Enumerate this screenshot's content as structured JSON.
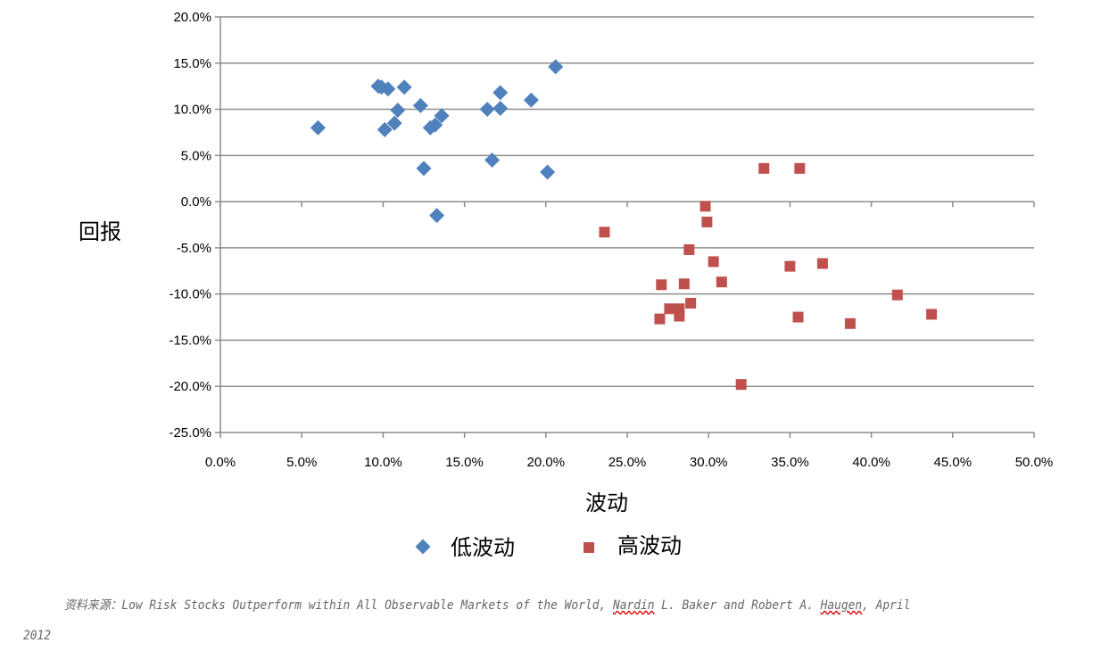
{
  "chart_data": {
    "type": "scatter",
    "xlabel": "波动",
    "ylabel": "回报",
    "xlim": [
      0,
      50
    ],
    "ylim": [
      -25,
      20
    ],
    "xticks": [
      "0.0%",
      "5.0%",
      "10.0%",
      "15.0%",
      "20.0%",
      "25.0%",
      "30.0%",
      "35.0%",
      "40.0%",
      "45.0%",
      "50.0%"
    ],
    "yticks": [
      "20.0%",
      "15.0%",
      "10.0%",
      "5.0%",
      "0.0%",
      "-5.0%",
      "-10.0%",
      "-15.0%",
      "-20.0%",
      "-25.0%"
    ],
    "grid": "horizontal",
    "legend_position": "bottom",
    "series": [
      {
        "name": "低波动",
        "marker": "diamond",
        "color": "#4F81BD",
        "points": [
          [
            6.0,
            8.0
          ],
          [
            9.7,
            12.5
          ],
          [
            9.9,
            12.4
          ],
          [
            10.3,
            12.2
          ],
          [
            11.3,
            12.4
          ],
          [
            12.3,
            10.4
          ],
          [
            10.9,
            9.9
          ],
          [
            10.1,
            7.8
          ],
          [
            10.7,
            8.5
          ],
          [
            12.9,
            8.0
          ],
          [
            13.2,
            8.3
          ],
          [
            13.6,
            9.3
          ],
          [
            12.5,
            3.6
          ],
          [
            13.3,
            -1.5
          ],
          [
            16.4,
            10.0
          ],
          [
            17.2,
            11.8
          ],
          [
            17.2,
            10.1
          ],
          [
            16.7,
            4.5
          ],
          [
            19.1,
            11.0
          ],
          [
            20.1,
            3.2
          ],
          [
            20.6,
            14.6
          ]
        ]
      },
      {
        "name": "高波动",
        "marker": "square",
        "color": "#C0504D",
        "points": [
          [
            23.6,
            -3.3
          ],
          [
            27.0,
            -12.7
          ],
          [
            27.1,
            -9.0
          ],
          [
            27.6,
            -11.6
          ],
          [
            28.2,
            -11.6
          ],
          [
            28.2,
            -12.4
          ],
          [
            28.5,
            -8.9
          ],
          [
            28.8,
            -5.2
          ],
          [
            28.9,
            -11.0
          ],
          [
            29.8,
            -0.5
          ],
          [
            29.9,
            -2.2
          ],
          [
            30.3,
            -6.5
          ],
          [
            30.8,
            -8.7
          ],
          [
            32.0,
            -19.8
          ],
          [
            33.4,
            3.6
          ],
          [
            35.0,
            -7.0
          ],
          [
            35.5,
            -12.5
          ],
          [
            35.6,
            3.6
          ],
          [
            37.0,
            -6.7
          ],
          [
            38.7,
            -13.2
          ],
          [
            41.6,
            -10.1
          ],
          [
            43.7,
            -12.2
          ]
        ]
      }
    ]
  },
  "source": {
    "prefix": "资料来源：Low Risk Stocks Outperform within All Observable Markets of the World, ",
    "author1": "Nardin",
    "middle": " L. Baker and Robert A. ",
    "author2": "Haugen",
    "suffix": ", April",
    "year": "2012"
  }
}
